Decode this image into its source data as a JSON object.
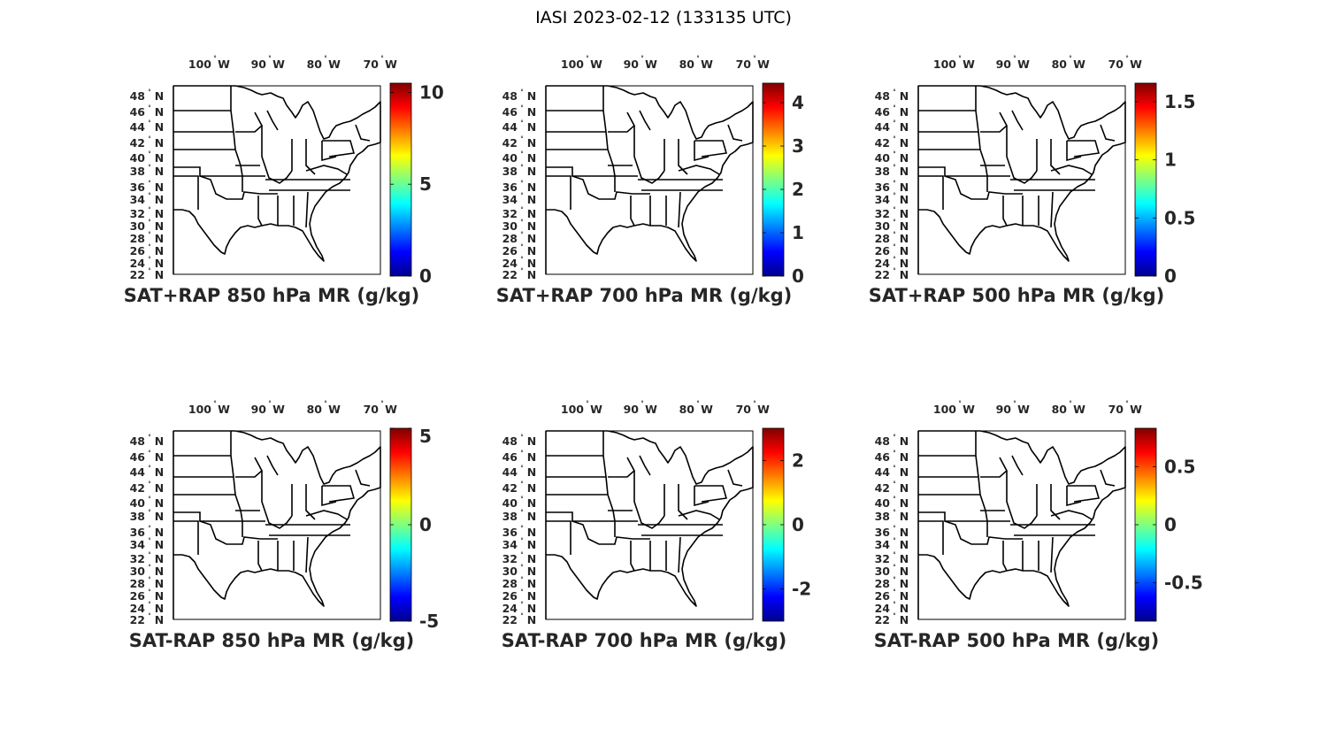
{
  "figure": {
    "title": "IASI 2023-02-12 (133135 UTC)"
  },
  "map_axes": {
    "lon_ticks": [
      "100",
      "90",
      "80",
      "70"
    ],
    "lon_hemisphere": "W",
    "lat_ticks": [
      "48",
      "46",
      "44",
      "42",
      "40",
      "38",
      "36",
      "34",
      "32",
      "30",
      "28",
      "26",
      "24",
      "22"
    ],
    "lat_hemisphere": "N",
    "degree_symbol": "°"
  },
  "colormap": "jet",
  "panels": [
    {
      "title": "SAT+RAP 850 hPa MR (g/kg)",
      "colorbar": {
        "min": 0,
        "max": 10.5,
        "ticks": [
          "0",
          "5",
          "10"
        ],
        "tick_values": [
          0,
          5,
          10
        ]
      }
    },
    {
      "title": "SAT+RAP 700 hPa MR (g/kg)",
      "colorbar": {
        "min": 0,
        "max": 4.45,
        "ticks": [
          "0",
          "1",
          "2",
          "3",
          "4"
        ],
        "tick_values": [
          0,
          1,
          2,
          3,
          4
        ]
      }
    },
    {
      "title": "SAT+RAP 500 hPa MR (g/kg)",
      "colorbar": {
        "min": 0,
        "max": 1.66,
        "ticks": [
          "0",
          "0.5",
          "1",
          "1.5"
        ],
        "tick_values": [
          0,
          0.5,
          1,
          1.5
        ]
      }
    },
    {
      "title": "SAT-RAP 850 hPa MR (g/kg)",
      "colorbar": {
        "min": -5,
        "max": 5,
        "ticks": [
          "-5",
          "0",
          "5"
        ],
        "tick_values": [
          -5,
          0,
          5
        ]
      }
    },
    {
      "title": "SAT-RAP 700 hPa MR (g/kg)",
      "colorbar": {
        "min": -3,
        "max": 3,
        "ticks": [
          "-2",
          "0",
          "2"
        ],
        "tick_values": [
          -2,
          0,
          2
        ]
      }
    },
    {
      "title": "SAT-RAP 500 hPa MR (g/kg)",
      "colorbar": {
        "min": -0.83,
        "max": 0.83,
        "ticks": [
          "-0.5",
          "0",
          "0.5"
        ],
        "tick_values": [
          -0.5,
          0,
          0.5
        ]
      }
    }
  ]
}
